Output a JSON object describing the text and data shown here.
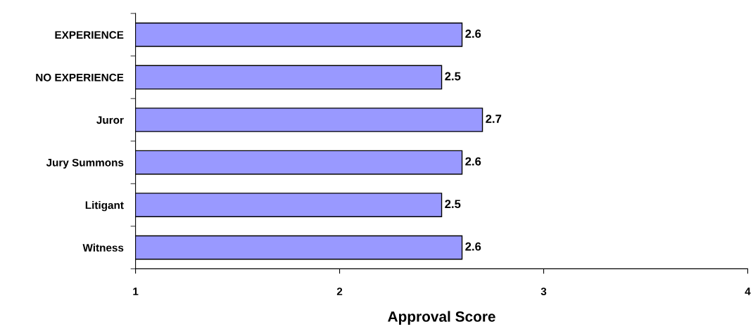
{
  "chart_data": {
    "type": "bar",
    "orientation": "horizontal",
    "xlabel": "Approval Score",
    "categories": [
      "EXPERIENCE",
      "NO EXPERIENCE",
      "Juror",
      "Jury Summons",
      "Litigant",
      "Witness"
    ],
    "values": [
      2.6,
      2.5,
      2.7,
      2.6,
      2.5,
      2.6
    ],
    "color": "#9999ff",
    "xlim": [
      1,
      4
    ],
    "xticks": [
      1,
      2,
      3,
      4
    ],
    "data_labels": true,
    "grid": false,
    "legend": false
  }
}
